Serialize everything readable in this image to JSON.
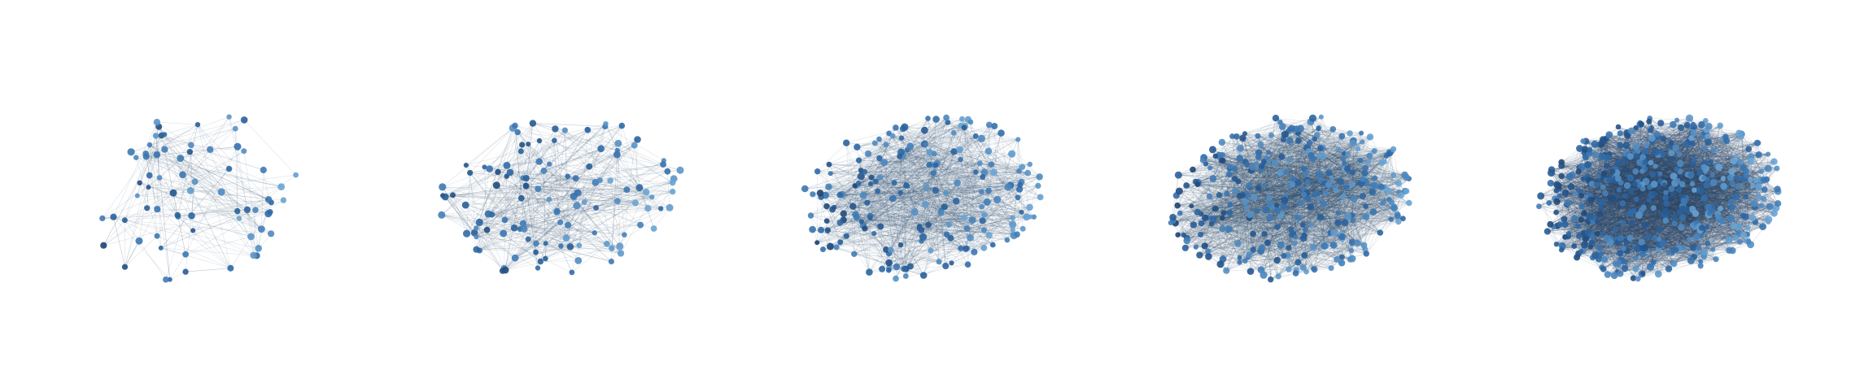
{
  "figure": {
    "panels": [
      {
        "id": "g1",
        "nodes": 70,
        "edge_ratio": 3.2,
        "edge_opacity": 0.16
      },
      {
        "id": "g2",
        "nodes": 120,
        "edge_ratio": 4.5,
        "edge_opacity": 0.16
      },
      {
        "id": "g3",
        "nodes": 200,
        "edge_ratio": 6.0,
        "edge_opacity": 0.15
      },
      {
        "id": "g4",
        "nodes": 320,
        "edge_ratio": 8.0,
        "edge_opacity": 0.16
      },
      {
        "id": "g5",
        "nodes": 480,
        "edge_ratio": 10.0,
        "edge_opacity": 0.18
      }
    ],
    "colors": {
      "node_dark": "#1b3f6b",
      "node_mid": "#2f6aa8",
      "node_light": "#6aa4d3",
      "edge": "#2b4a6a",
      "background": "#ffffff"
    }
  }
}
